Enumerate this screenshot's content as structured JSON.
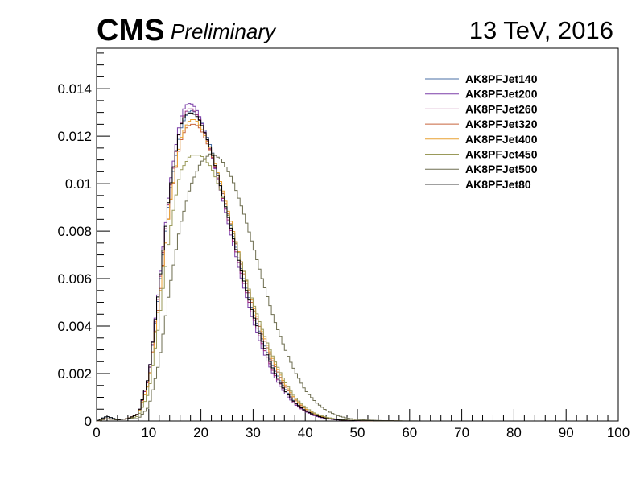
{
  "header": {
    "experiment": "CMS",
    "status": "Preliminary",
    "energy_label": "13 TeV, 2016"
  },
  "chart_data": {
    "type": "line",
    "title": "",
    "xlabel": "",
    "ylabel": "",
    "xlim": [
      0,
      100
    ],
    "ylim": [
      0,
      0.0157
    ],
    "x_ticks": [
      0,
      10,
      20,
      30,
      40,
      50,
      60,
      70,
      80,
      90,
      100
    ],
    "x_tick_labels": [
      "0",
      "10",
      "20",
      "30",
      "40",
      "50",
      "60",
      "70",
      "80",
      "90",
      "100"
    ],
    "y_ticks": [
      0,
      0.002,
      0.004,
      0.006,
      0.008,
      0.01,
      0.012,
      0.014
    ],
    "y_tick_labels": [
      "0",
      "0.002",
      "0.004",
      "0.006",
      "0.008",
      "0.01",
      "0.012",
      "0.014"
    ],
    "grid": false,
    "legend_position": "top-right",
    "style": "step-histogram",
    "series": [
      {
        "name": "AK8PFJet140",
        "color": "#4a6fa5",
        "x": [
          0,
          2,
          4,
          6,
          8,
          10,
          12,
          14,
          16,
          17,
          18,
          19,
          20,
          22,
          24,
          26,
          28,
          30,
          32,
          34,
          36,
          38,
          40,
          42,
          44,
          46,
          48,
          50,
          55,
          60,
          65
        ],
        "y": [
          0,
          0.0002,
          5e-05,
          0.0001,
          0.0003,
          0.0018,
          0.0055,
          0.0095,
          0.0122,
          0.0128,
          0.0131,
          0.013,
          0.0127,
          0.0115,
          0.0098,
          0.008,
          0.0062,
          0.0046,
          0.0033,
          0.0022,
          0.0014,
          0.0008,
          0.00045,
          0.00024,
          0.00012,
          6e-05,
          3e-05,
          1.5e-05,
          4e-06,
          1e-06,
          0
        ]
      },
      {
        "name": "AK8PFJet200",
        "color": "#7b3fa8",
        "x": [
          0,
          2,
          4,
          6,
          8,
          10,
          12,
          14,
          16,
          17,
          18,
          19,
          20,
          22,
          24,
          26,
          28,
          30,
          32,
          34,
          36,
          38,
          40,
          42,
          44,
          46,
          48,
          50,
          55,
          60,
          65
        ],
        "y": [
          0,
          0.0001,
          5e-05,
          0.0001,
          0.0003,
          0.0019,
          0.0058,
          0.0099,
          0.0127,
          0.0133,
          0.0134,
          0.0132,
          0.0127,
          0.0113,
          0.0095,
          0.0076,
          0.0058,
          0.0042,
          0.0029,
          0.0019,
          0.0012,
          0.0007,
          0.0004,
          0.0002,
          0.0001,
          5e-05,
          2.5e-05,
          1e-05,
          3e-06,
          1e-06,
          0
        ]
      },
      {
        "name": "AK8PFJet260",
        "color": "#9c2a7c",
        "x": [
          0,
          2,
          4,
          6,
          8,
          10,
          12,
          14,
          16,
          17,
          18,
          19,
          20,
          22,
          24,
          26,
          28,
          30,
          32,
          34,
          36,
          38,
          40,
          42,
          44,
          46,
          48,
          50,
          55,
          60,
          65
        ],
        "y": [
          0,
          0.0001,
          5e-05,
          0.0001,
          0.0003,
          0.0018,
          0.0056,
          0.0096,
          0.0124,
          0.013,
          0.0132,
          0.013,
          0.0126,
          0.0113,
          0.0096,
          0.0078,
          0.006,
          0.0044,
          0.0031,
          0.002,
          0.0013,
          0.00075,
          0.00042,
          0.00022,
          0.00011,
          5.5e-05,
          2.7e-05,
          1.2e-05,
          3e-06,
          1e-06,
          0
        ]
      },
      {
        "name": "AK8PFJet320",
        "color": "#c8643c",
        "x": [
          0,
          2,
          4,
          6,
          8,
          10,
          12,
          14,
          16,
          17,
          18,
          19,
          20,
          22,
          24,
          26,
          28,
          30,
          32,
          34,
          36,
          38,
          40,
          42,
          44,
          46,
          48,
          50,
          55,
          60,
          65
        ],
        "y": [
          0,
          0.0001,
          5e-05,
          0.0001,
          0.0003,
          0.0016,
          0.0051,
          0.009,
          0.0117,
          0.0123,
          0.0125,
          0.0125,
          0.0123,
          0.0113,
          0.0098,
          0.0081,
          0.0064,
          0.0048,
          0.0035,
          0.0024,
          0.0015,
          0.0009,
          0.0005,
          0.00027,
          0.00013,
          6e-05,
          3e-05,
          1.5e-05,
          4e-06,
          1e-06,
          0
        ]
      },
      {
        "name": "AK8PFJet400",
        "color": "#e8a030",
        "x": [
          0,
          2,
          4,
          6,
          8,
          10,
          12,
          14,
          16,
          17,
          18,
          19,
          20,
          22,
          24,
          26,
          28,
          30,
          32,
          34,
          36,
          38,
          40,
          42,
          44,
          46,
          48,
          50,
          55,
          60,
          65
        ],
        "y": [
          0,
          0.0001,
          5e-05,
          0.0001,
          0.0003,
          0.0016,
          0.005,
          0.009,
          0.0118,
          0.0124,
          0.0127,
          0.0127,
          0.0124,
          0.0114,
          0.0099,
          0.0082,
          0.0065,
          0.0049,
          0.0036,
          0.0025,
          0.0016,
          0.00095,
          0.00052,
          0.00028,
          0.00014,
          7e-05,
          3.5e-05,
          1.6e-05,
          4e-06,
          1e-06,
          0
        ]
      },
      {
        "name": "AK8PFJet450",
        "color": "#9a9a5a",
        "x": [
          0,
          2,
          4,
          6,
          8,
          10,
          12,
          14,
          16,
          18,
          20,
          22,
          24,
          26,
          28,
          30,
          32,
          34,
          36,
          38,
          40,
          42,
          44,
          46,
          48,
          50,
          55,
          60,
          65
        ],
        "y": [
          0,
          0.0001,
          5e-05,
          0.0001,
          0.0002,
          0.0012,
          0.0042,
          0.0079,
          0.0105,
          0.0112,
          0.0112,
          0.0107,
          0.0096,
          0.0081,
          0.0065,
          0.005,
          0.0037,
          0.0026,
          0.0017,
          0.001,
          0.00058,
          0.00031,
          0.00016,
          8e-05,
          4e-05,
          2e-05,
          5e-06,
          1e-06,
          0
        ]
      },
      {
        "name": "AK8PFJet500",
        "color": "#6e6e50",
        "x": [
          0,
          2,
          4,
          6,
          8,
          10,
          12,
          14,
          16,
          18,
          20,
          22,
          24,
          26,
          28,
          30,
          32,
          34,
          36,
          38,
          40,
          42,
          44,
          46,
          48,
          50,
          55,
          60,
          65
        ],
        "y": [
          0,
          0.0001,
          5e-05,
          0.0001,
          0.0001,
          0.0006,
          0.0025,
          0.0056,
          0.0082,
          0.0099,
          0.0109,
          0.0113,
          0.011,
          0.0102,
          0.0089,
          0.0074,
          0.0058,
          0.0043,
          0.0031,
          0.0021,
          0.0013,
          0.0008,
          0.00045,
          0.00024,
          0.00012,
          6e-05,
          1.5e-05,
          3e-06,
          0
        ]
      },
      {
        "name": "AK8PFJet80",
        "color": "#000000",
        "x": [
          0,
          2,
          4,
          6,
          8,
          10,
          12,
          14,
          16,
          17,
          18,
          19,
          20,
          22,
          24,
          26,
          28,
          30,
          32,
          34,
          36,
          38,
          40,
          42,
          44,
          46,
          48,
          50,
          55,
          60,
          65
        ],
        "y": [
          0,
          0.0002,
          5e-05,
          0.0001,
          0.0003,
          0.0019,
          0.0057,
          0.0097,
          0.0124,
          0.0129,
          0.013,
          0.0129,
          0.0126,
          0.0114,
          0.0097,
          0.0079,
          0.0061,
          0.0045,
          0.0032,
          0.0021,
          0.0013,
          0.00078,
          0.00043,
          0.00023,
          0.00011,
          5.5e-05,
          2.7e-05,
          1.2e-05,
          3e-06,
          1e-06,
          0
        ]
      }
    ]
  }
}
